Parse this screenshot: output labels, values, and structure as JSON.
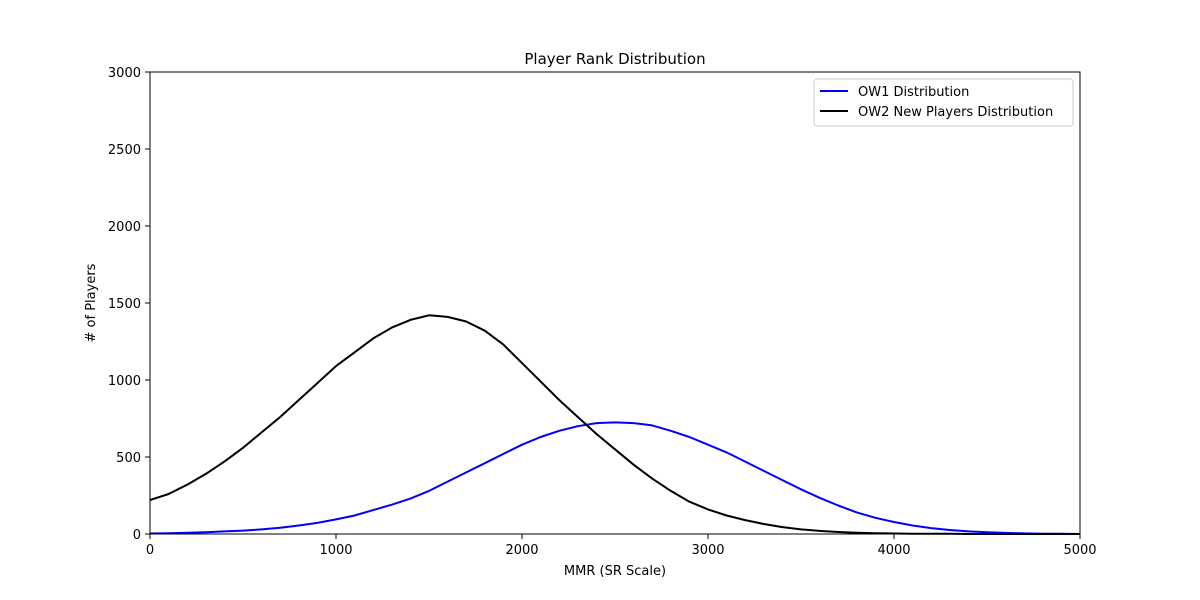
{
  "chart_data": {
    "type": "line",
    "title": "Player Rank Distribution",
    "xlabel": "MMR (SR Scale)",
    "ylabel": "# of Players",
    "xlim": [
      0,
      5000
    ],
    "ylim": [
      0,
      3000
    ],
    "xticks": [
      0,
      1000,
      2000,
      3000,
      4000,
      5000
    ],
    "yticks": [
      0,
      500,
      1000,
      1500,
      2000,
      2500,
      3000
    ],
    "grid": false,
    "legend_position": "top-right",
    "series": [
      {
        "name": "OW1 Distribution",
        "color": "#0000ff",
        "x": [
          0,
          100,
          200,
          300,
          400,
          500,
          600,
          700,
          800,
          900,
          1000,
          1100,
          1200,
          1300,
          1400,
          1500,
          1600,
          1700,
          1800,
          1900,
          2000,
          2100,
          2200,
          2300,
          2400,
          2500,
          2600,
          2700,
          2800,
          2900,
          3000,
          3100,
          3200,
          3300,
          3400,
          3500,
          3600,
          3700,
          3800,
          3900,
          4000,
          4100,
          4200,
          4300,
          4400,
          4500,
          4600,
          4700,
          4800,
          4900,
          5000
        ],
        "y": [
          3,
          5,
          8,
          12,
          17,
          22,
          30,
          40,
          55,
          72,
          95,
          120,
          155,
          190,
          230,
          280,
          340,
          400,
          460,
          520,
          580,
          630,
          670,
          700,
          720,
          725,
          720,
          705,
          670,
          630,
          580,
          530,
          470,
          410,
          350,
          290,
          235,
          185,
          140,
          105,
          78,
          55,
          38,
          26,
          17,
          11,
          7,
          4,
          2,
          1,
          0
        ]
      },
      {
        "name": "OW2 New Players Distribution",
        "color": "#000000",
        "x": [
          0,
          100,
          200,
          300,
          400,
          500,
          600,
          700,
          800,
          900,
          1000,
          1100,
          1200,
          1300,
          1400,
          1500,
          1600,
          1700,
          1800,
          1900,
          2000,
          2100,
          2200,
          2300,
          2400,
          2500,
          2600,
          2700,
          2800,
          2900,
          3000,
          3100,
          3200,
          3300,
          3400,
          3500,
          3600,
          3700,
          3800,
          3900,
          4000,
          4100,
          4200,
          4300,
          4400,
          4500,
          4600,
          4700,
          4800,
          4900,
          5000
        ],
        "y": [
          220,
          260,
          320,
          390,
          470,
          560,
          660,
          760,
          870,
          980,
          1090,
          1180,
          1270,
          1340,
          1390,
          1420,
          1410,
          1380,
          1320,
          1230,
          1110,
          990,
          870,
          760,
          650,
          550,
          450,
          360,
          280,
          210,
          160,
          120,
          90,
          65,
          45,
          30,
          20,
          13,
          8,
          5,
          3,
          2,
          1,
          1,
          0,
          0,
          0,
          0,
          0,
          0,
          0
        ]
      }
    ]
  }
}
